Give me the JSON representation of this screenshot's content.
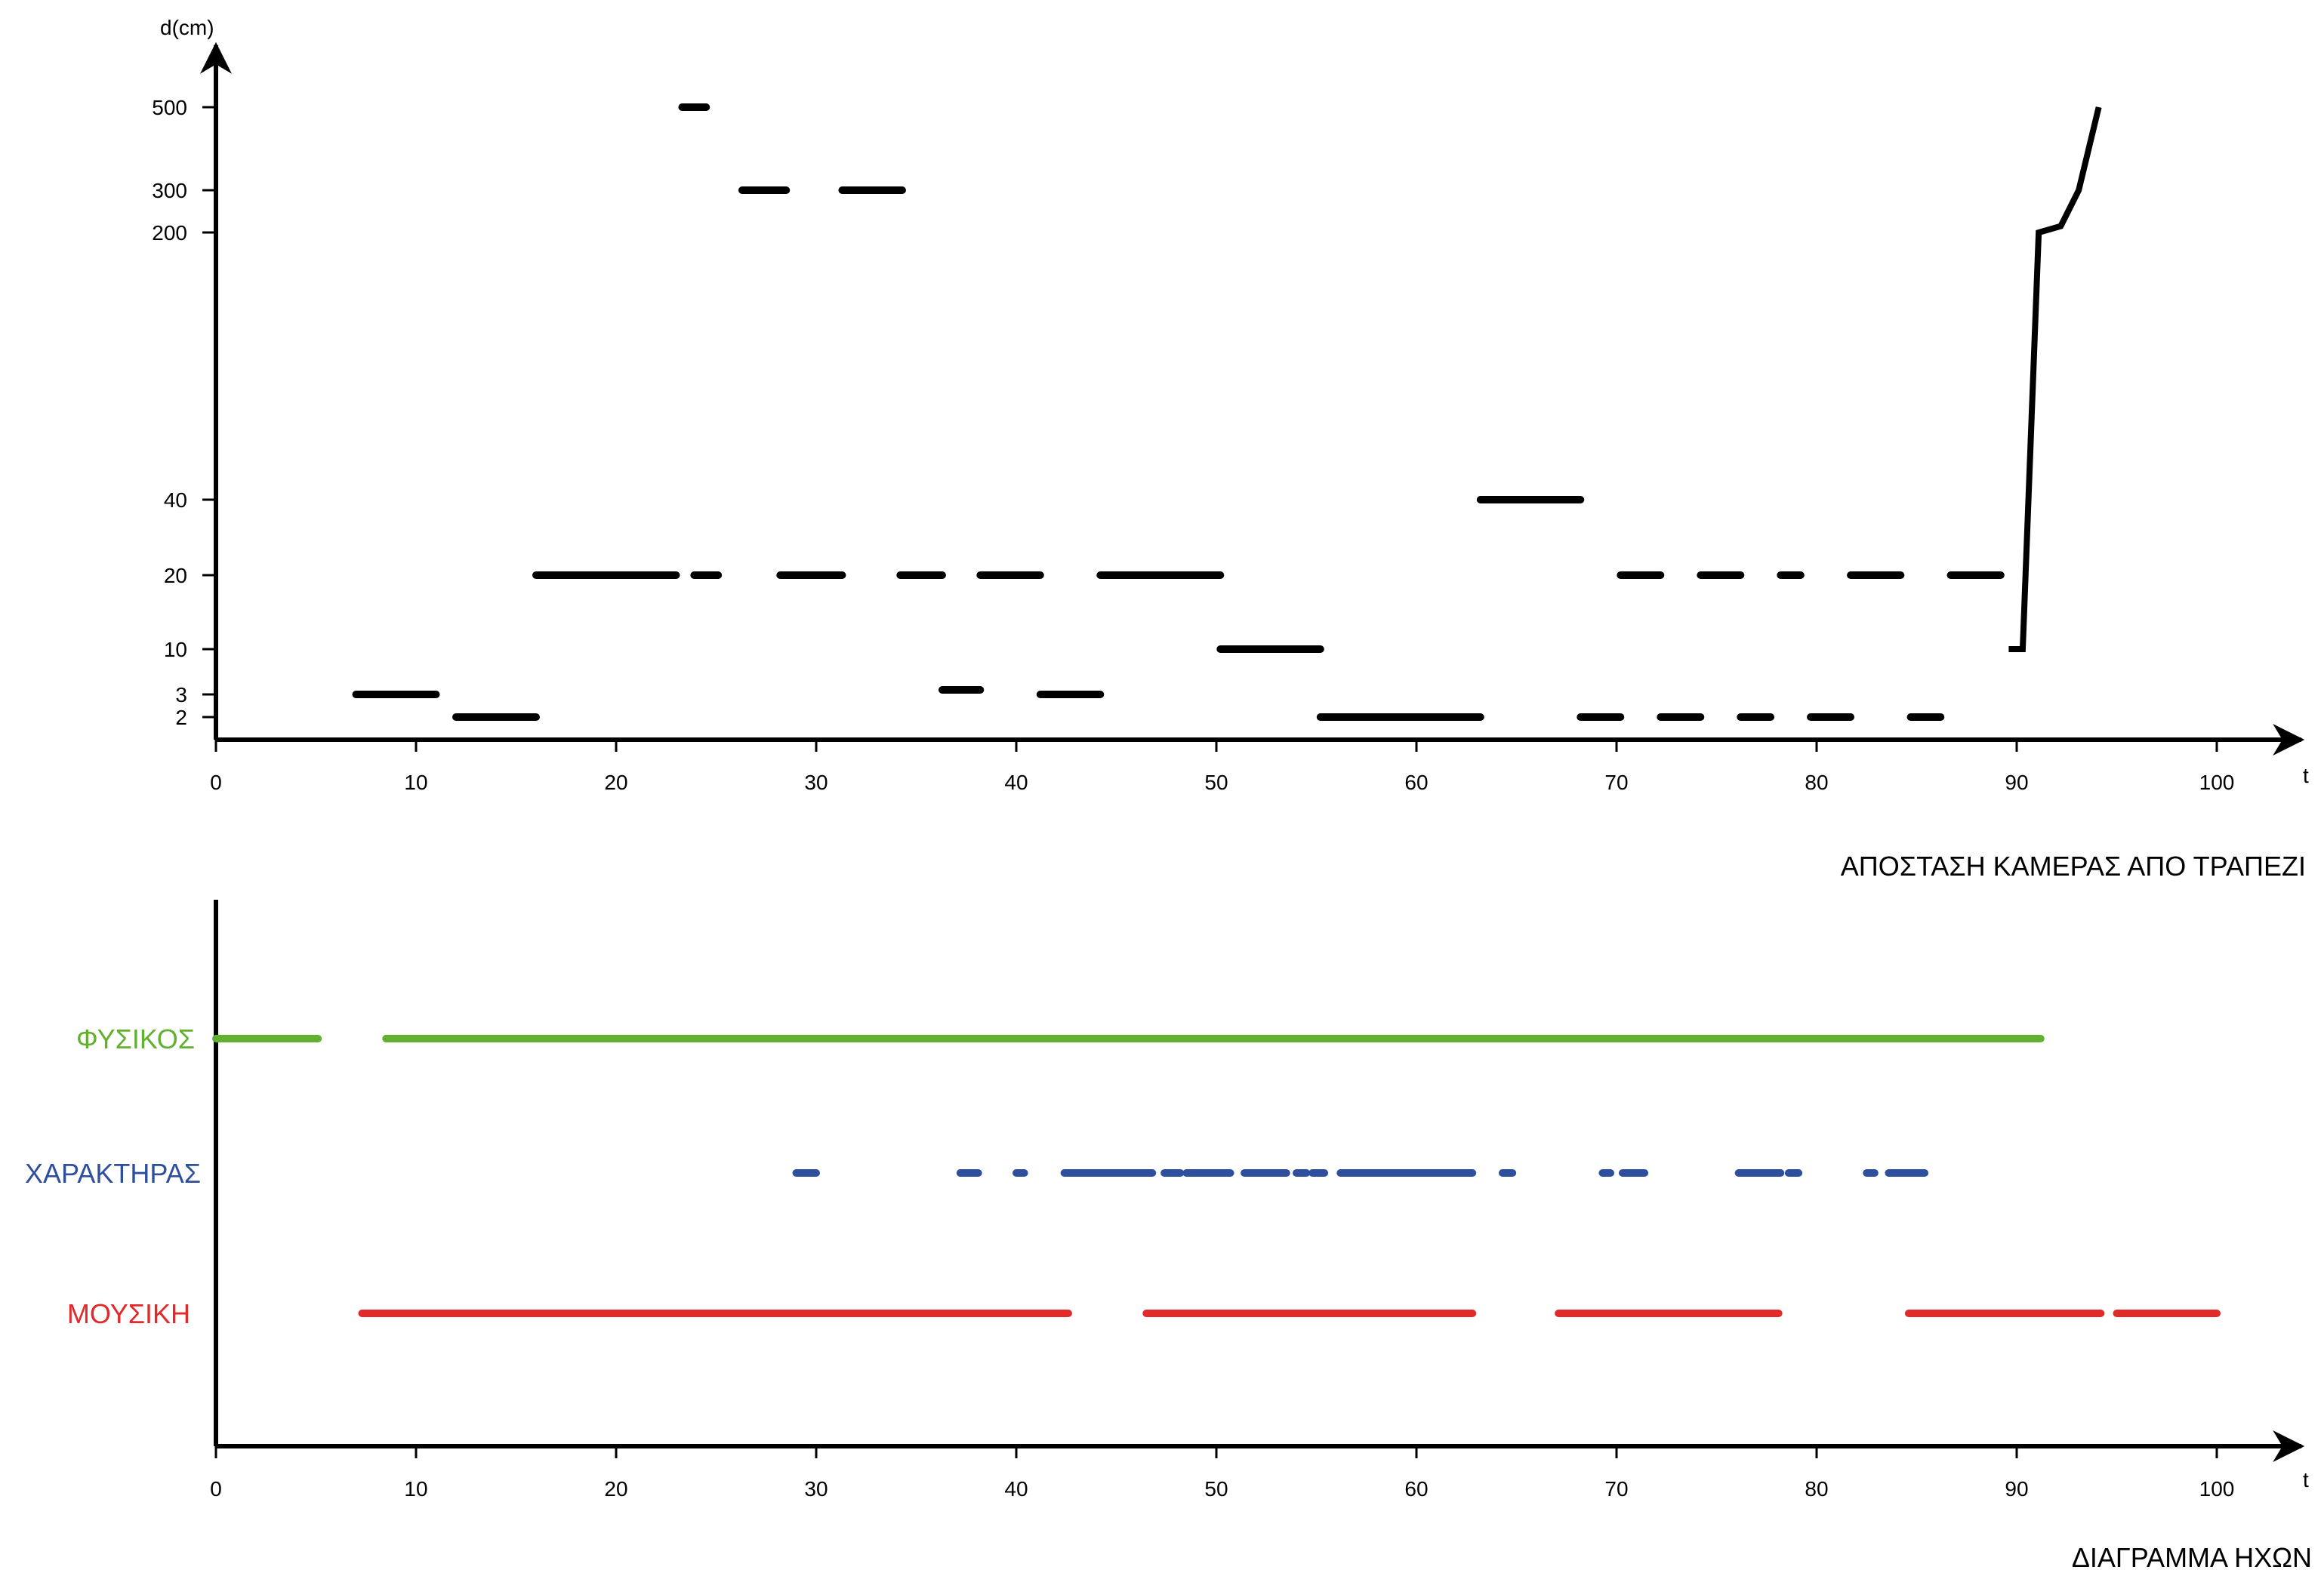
{
  "chart_data": [
    {
      "type": "line",
      "title": "ΑΠΟΣΤΑΣΗ ΚΑΜΕΡΑΣ ΑΠΟ ΤΡΑΠΕΖΙ",
      "xlabel": "t",
      "ylabel": "d(cm)",
      "xlim": [
        0,
        100
      ],
      "x_ticks": [
        "0",
        "10",
        "20",
        "30",
        "40",
        "50",
        "60",
        "70",
        "80",
        "90",
        "100"
      ],
      "y_ticks": [
        "2",
        "3",
        "10",
        "20",
        "40",
        "200",
        "300",
        "500"
      ],
      "y_scale": "categorical-nonlinear",
      "grid": false,
      "color": "#000000",
      "segments": [
        {
          "x": [
            7,
            11
          ],
          "y": 3
        },
        {
          "x": [
            12,
            16
          ],
          "y": 2
        },
        {
          "x": [
            16,
            23
          ],
          "y": 20
        },
        {
          "x": [
            23.3,
            24.5
          ],
          "y": 500
        },
        {
          "x": [
            23.9,
            25.1
          ],
          "y": 20
        },
        {
          "x": [
            26.3,
            28.5
          ],
          "y": 300
        },
        {
          "x": [
            28.2,
            31.3
          ],
          "y": 20
        },
        {
          "x": [
            31.3,
            34.3
          ],
          "y": 300
        },
        {
          "x": [
            34.2,
            36.3
          ],
          "y": 20
        },
        {
          "x": [
            36.3,
            38.2
          ],
          "y": 3.7
        },
        {
          "x": [
            38.2,
            41.2
          ],
          "y": 20
        },
        {
          "x": [
            41.2,
            44.2
          ],
          "y": 3
        },
        {
          "x": [
            44.2,
            50.2
          ],
          "y": 20
        },
        {
          "x": [
            50.2,
            55.2
          ],
          "y": 10
        },
        {
          "x": [
            55.2,
            63.2
          ],
          "y": 2
        },
        {
          "x": [
            63.2,
            68.2
          ],
          "y": 40
        },
        {
          "x": [
            68.2,
            70.2
          ],
          "y": 2
        },
        {
          "x": [
            70.2,
            72.2
          ],
          "y": 20
        },
        {
          "x": [
            72.2,
            74.2
          ],
          "y": 2
        },
        {
          "x": [
            74.2,
            76.2
          ],
          "y": 20
        },
        {
          "x": [
            76.2,
            77.7
          ],
          "y": 2
        },
        {
          "x": [
            78.2,
            79.2
          ],
          "y": 20
        },
        {
          "x": [
            79.7,
            81.7
          ],
          "y": 2
        },
        {
          "x": [
            81.7,
            84.2
          ],
          "y": 20
        },
        {
          "x": [
            84.7,
            86.2
          ],
          "y": 2
        },
        {
          "x": [
            86.7,
            89.2
          ],
          "y": 20
        }
      ],
      "final_line": {
        "x": [
          89.6,
          90.3,
          91.1,
          92.2,
          93.1,
          94.1
        ],
        "y": [
          10,
          10,
          200,
          215,
          300,
          500
        ]
      }
    },
    {
      "type": "bar",
      "title": "ΔΙΑΓΡΑΜΜΑ ΗΧΩΝ",
      "xlabel": "t",
      "xlim": [
        0,
        100
      ],
      "x_ticks": [
        "0",
        "10",
        "20",
        "30",
        "40",
        "50",
        "60",
        "70",
        "80",
        "90",
        "100"
      ],
      "grid": false,
      "series": [
        {
          "name": "ΦΥΣΙΚΟΣ",
          "color": "#62b030",
          "intervals": [
            [
              0,
              5.1
            ],
            [
              8.5,
              91.2
            ]
          ]
        },
        {
          "name": "ΧΑΡΑΚΤΗΡΑΣ",
          "color": "#2e4f9e",
          "intervals": [
            [
              29,
              30
            ],
            [
              37.2,
              38.1
            ],
            [
              40,
              40.4
            ],
            [
              42.4,
              46.8
            ],
            [
              47.4,
              48.2
            ],
            [
              48.5,
              50.7
            ],
            [
              51.4,
              53.5
            ],
            [
              54,
              54.5
            ],
            [
              54.8,
              55.4
            ],
            [
              56.2,
              62.8
            ],
            [
              64.3,
              64.8
            ],
            [
              69.3,
              69.7
            ],
            [
              70.3,
              71.4
            ],
            [
              76.1,
              78.2
            ],
            [
              78.6,
              79.1
            ],
            [
              82.5,
              82.9
            ],
            [
              83.6,
              85.4
            ]
          ]
        },
        {
          "name": "ΜΟΥΣΙΚΗ",
          "color": "#e12a2a",
          "intervals": [
            [
              7.3,
              42.6
            ],
            [
              46.5,
              62.8
            ],
            [
              67.1,
              78.1
            ],
            [
              84.6,
              94.2
            ],
            [
              95,
              100
            ]
          ]
        }
      ]
    }
  ]
}
